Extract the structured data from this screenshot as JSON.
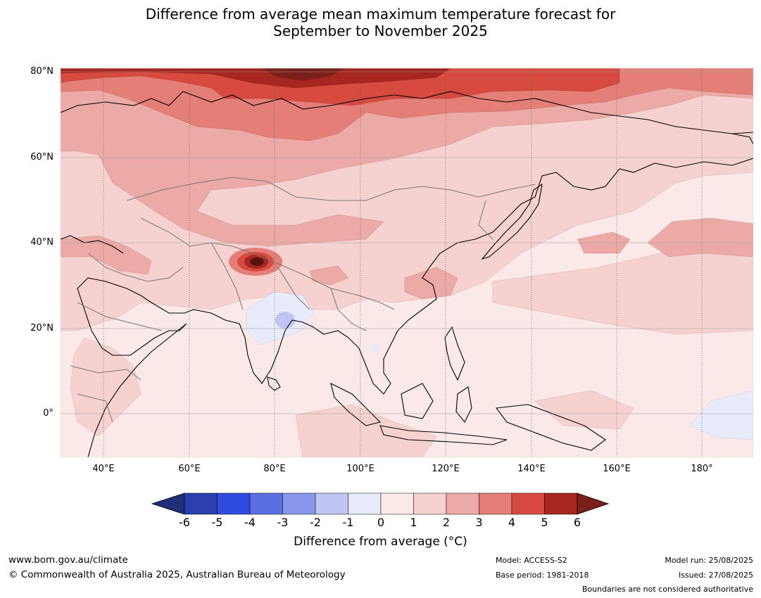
{
  "title_line1": "Difference from average mean maximum temperature forecast for",
  "title_line2": "September to November 2025",
  "lat_labels": [
    "80°N",
    "60°N",
    "40°N",
    "20°N",
    "0°"
  ],
  "lon_labels": [
    "40°E",
    "60°E",
    "80°E",
    "100°E",
    "120°E",
    "140°E",
    "160°E",
    "180°"
  ],
  "legend": {
    "ticks": [
      "-6",
      "-5",
      "-4",
      "-3",
      "-2",
      "-1",
      "0",
      "1",
      "2",
      "3",
      "4",
      "5",
      "6"
    ],
    "colors": [
      "#1f2f7a",
      "#2a3ead",
      "#2f4be0",
      "#5b70e0",
      "#8897ea",
      "#bfc6f3",
      "#e8ebfa",
      "#fbe9e8",
      "#f5d2cf",
      "#ecaaa6",
      "#e47f78",
      "#d64a40",
      "#a7261f",
      "#7a1f1a"
    ],
    "title": "Difference from average (°C)"
  },
  "footer": {
    "url": "www.bom.gov.au/climate",
    "copyright": "© Commonwealth of Australia 2025, Australian Bureau of Meteorology",
    "model": "Model: ACCESS-S2",
    "base_period": "Base period: 1981-2018",
    "model_run": "Model run: 25/08/2025",
    "issued": "Issued: 27/08/2025",
    "disclaimer": "Boundaries are not considered authoritative"
  }
}
